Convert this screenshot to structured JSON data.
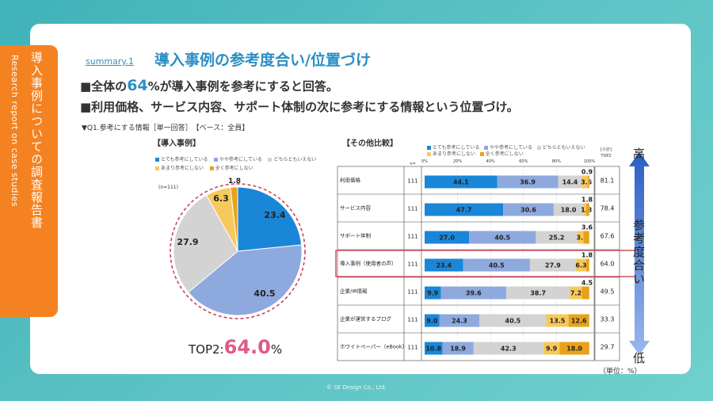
{
  "side": {
    "title": "導入事例についての調査報告書",
    "subtitle": "Research report on case studies"
  },
  "header": {
    "summary": "summary.1",
    "title": "導入事例の参考度合い/位置づけ"
  },
  "bullets": {
    "line1_pre": "■全体の",
    "line1_num": "64",
    "line1_post": "%が導入事例を参考にすると回答。",
    "line2": "■利用価格、サービス内容、サポート体制の次に参考にする情報という位置づけ。"
  },
  "question": "▼Q1.参考にする情報［単一回答］　【ベース：全員】",
  "left_label": "【導入事例】",
  "right_label": "【その他比較】",
  "n_label": "(n=111)",
  "n_header": "n=",
  "top2_header": [
    "[小計]",
    "TOP2"
  ],
  "top2": {
    "label": "TOP2:",
    "value": "64.0",
    "unit": "%"
  },
  "scale": {
    "high": "高",
    "low": "低",
    "axis": "参考度合い"
  },
  "unit_note": "（単位：%）",
  "copyright": "© SE Design Co., Ltd.",
  "colors": [
    "#1a86d8",
    "#8ea9de",
    "#d3d3d3",
    "#f7c95c",
    "#e8a21a"
  ],
  "chart_data": [
    {
      "type": "pie",
      "categories": [
        "とても参考にしている",
        "やや参考にしている",
        "どちらともいえない",
        "あまり参考にしない",
        "全く参考にしない"
      ],
      "values": [
        23.4,
        40.5,
        27.9,
        6.3,
        1.8
      ]
    },
    {
      "type": "bar",
      "stacked": true,
      "orientation": "horizontal",
      "categories": [
        "利用価格",
        "サービス内容",
        "サポート体制",
        "導入事例（使用者の声）",
        "企業/IR情報",
        "企業が運営するブログ",
        "ホワイトペーパー（eBook）"
      ],
      "n": [
        111,
        111,
        111,
        111,
        111,
        111,
        111
      ],
      "top2": [
        "81.1",
        "78.4",
        "67.6",
        "64.0",
        "49.5",
        "33.3",
        "29.7"
      ],
      "xlim": [
        0,
        100
      ],
      "xticks": [
        "0%",
        "20%",
        "40%",
        "60%",
        "80%",
        "100%"
      ],
      "series": [
        {
          "name": "とても参考にしている",
          "values": [
            44.1,
            47.7,
            27.0,
            23.4,
            9.9,
            9.0,
            10.8
          ]
        },
        {
          "name": "やや参考にしている",
          "values": [
            36.9,
            30.6,
            40.5,
            40.5,
            39.6,
            24.3,
            18.9
          ]
        },
        {
          "name": "どちらともいえない",
          "values": [
            14.4,
            18.0,
            25.2,
            27.9,
            38.7,
            40.5,
            42.3
          ]
        },
        {
          "name": "あまり参考にしない",
          "values": [
            3.6,
            1.8,
            3.6,
            6.3,
            7.2,
            13.5,
            9.9
          ]
        },
        {
          "name": "全く参考にしない",
          "values": [
            0.9,
            1.8,
            3.6,
            1.8,
            4.5,
            12.6,
            18.0
          ]
        }
      ]
    }
  ]
}
